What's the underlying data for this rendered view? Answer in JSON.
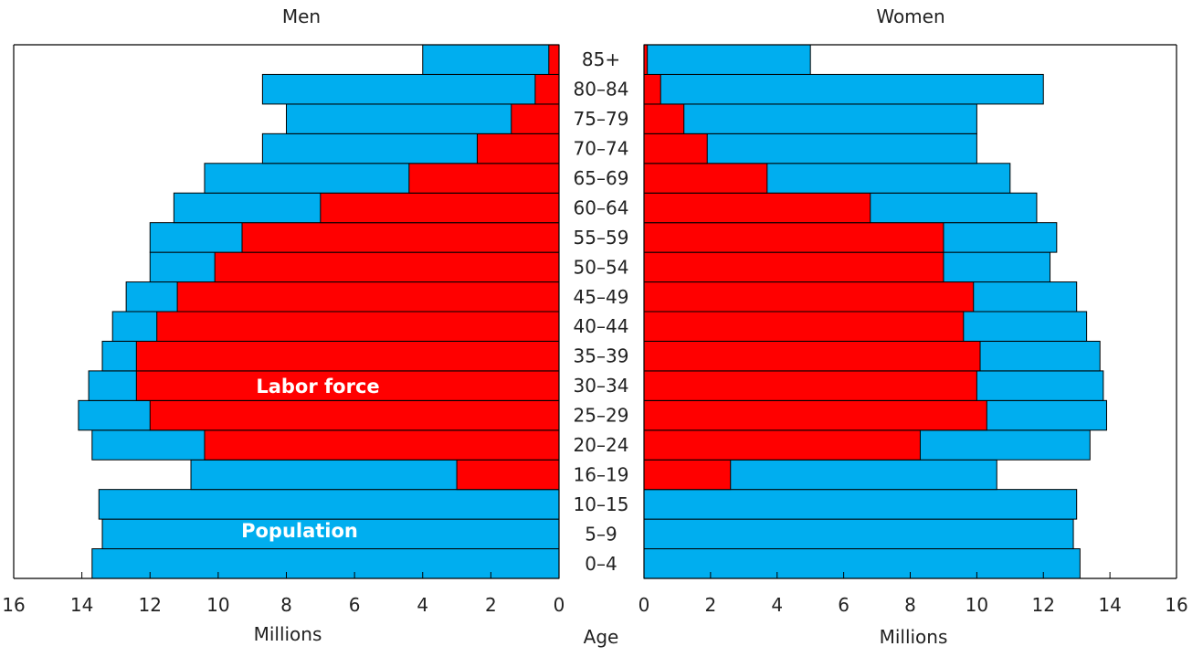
{
  "chart_data": {
    "type": "bar",
    "headings": {
      "men": "Men",
      "women": "Women"
    },
    "xlabel_left": "Millions",
    "xlabel_right": "Millions",
    "center_label": "Age",
    "annotations": {
      "labor_force": "Labor force",
      "population": "Population"
    },
    "xlim": [
      0,
      16
    ],
    "x_ticks": [
      "0",
      "2",
      "4",
      "6",
      "8",
      "10",
      "12",
      "14",
      "16"
    ],
    "categories": [
      "0–4",
      "5–9",
      "10–15",
      "16–19",
      "20–24",
      "25–29",
      "30–34",
      "35–39",
      "40–44",
      "45–49",
      "50–54",
      "55–59",
      "60–64",
      "65–69",
      "70–74",
      "75–79",
      "80–84",
      "85+"
    ],
    "series": [
      {
        "name": "Population",
        "group": "Men",
        "values": [
          13.7,
          13.4,
          13.5,
          10.8,
          13.7,
          14.1,
          13.8,
          13.4,
          13.1,
          12.7,
          12.0,
          12.0,
          11.3,
          10.4,
          8.7,
          8.0,
          8.7,
          4.0
        ]
      },
      {
        "name": "Labor force",
        "group": "Men",
        "values": [
          0,
          0,
          0,
          3.0,
          10.4,
          12.0,
          12.4,
          12.4,
          11.8,
          11.2,
          10.1,
          9.3,
          7.0,
          4.4,
          2.4,
          1.4,
          0.7,
          0.3
        ]
      },
      {
        "name": "Population",
        "group": "Women",
        "values": [
          13.1,
          12.9,
          13.0,
          10.6,
          13.4,
          13.9,
          13.8,
          13.7,
          13.3,
          13.0,
          12.2,
          12.4,
          11.8,
          11.0,
          10.0,
          10.0,
          12.0,
          5.0
        ]
      },
      {
        "name": "Labor force",
        "group": "Women",
        "values": [
          0,
          0,
          0,
          2.6,
          8.3,
          10.3,
          10.0,
          10.1,
          9.6,
          9.9,
          9.0,
          9.0,
          6.8,
          3.7,
          1.9,
          1.2,
          0.5,
          0.1
        ]
      }
    ],
    "colors": {
      "population": "#00aeef",
      "labor_force": "#ff0000",
      "frame": "#000000"
    },
    "grid": false
  }
}
